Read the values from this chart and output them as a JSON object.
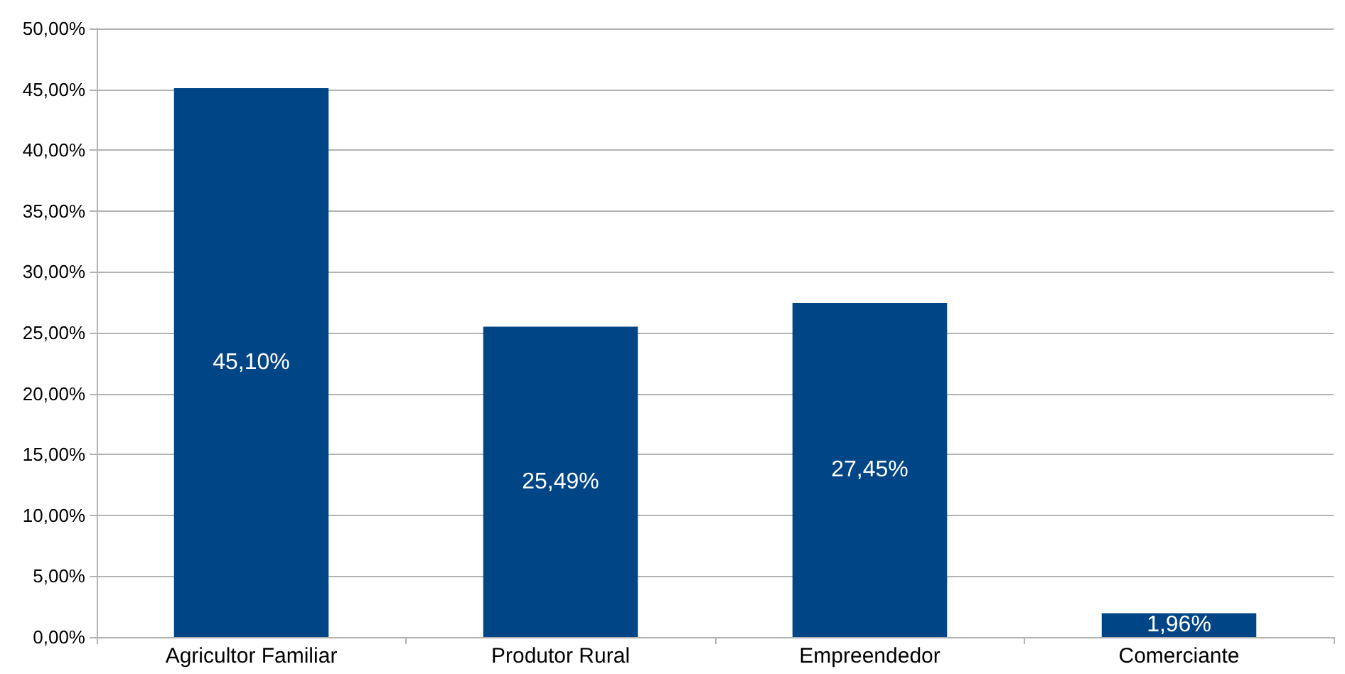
{
  "chart_data": {
    "type": "bar",
    "categories": [
      "Agricultor Familiar",
      "Produtor Rural",
      "Empreendedor",
      "Comerciante"
    ],
    "values": [
      45.1,
      25.49,
      27.45,
      1.96
    ],
    "color": "#004586",
    "value_labels": [
      "45,10%",
      "25,49%",
      "27,45%",
      "1,96%"
    ],
    "ylim": [
      0,
      50
    ],
    "yticks": [
      {
        "value": 0,
        "label": "0,00%"
      },
      {
        "value": 5,
        "label": "5,00%"
      },
      {
        "value": 10,
        "label": "10,00%"
      },
      {
        "value": 15,
        "label": "15,00%"
      },
      {
        "value": 20,
        "label": "20,00%"
      },
      {
        "value": 25,
        "label": "25,00%"
      },
      {
        "value": 30,
        "label": "30,00%"
      },
      {
        "value": 35,
        "label": "35,00%"
      },
      {
        "value": 40,
        "label": "40,00%"
      },
      {
        "value": 45,
        "label": "45,00%"
      },
      {
        "value": 50,
        "label": "50,00%"
      }
    ],
    "grid": "y"
  }
}
